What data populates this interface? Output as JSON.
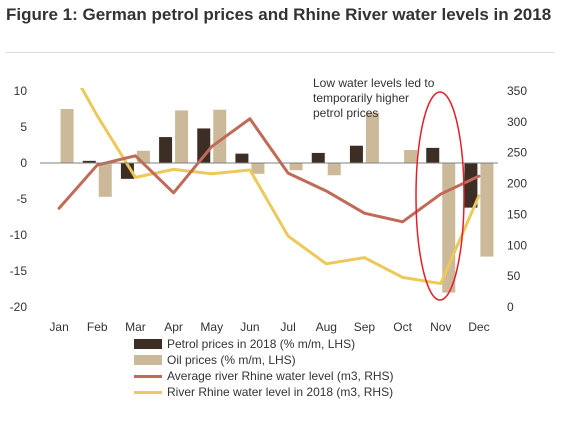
{
  "figure": {
    "title": "Figure 1: German petrol prices and Rhine River water levels in 2018"
  },
  "colors": {
    "petrol": "#3d2e25",
    "oil": "#cbb99a",
    "avg_river": "#c06a57",
    "river_2018": "#ecc95a",
    "ellipse": "#e2202a",
    "axis": "#808080"
  },
  "chart_data": {
    "type": "bar",
    "categories": [
      "Jan",
      "Feb",
      "Mar",
      "Apr",
      "May",
      "Jun",
      "Jul",
      "Aug",
      "Sep",
      "Oct",
      "Nov",
      "Dec"
    ],
    "ylim_left": [
      -20,
      10
    ],
    "yticks_left": [
      10,
      5,
      0,
      -5,
      -10,
      -15,
      -20
    ],
    "ylim_right": [
      0,
      350
    ],
    "yticks_right": [
      350,
      300,
      250,
      200,
      150,
      100,
      50,
      0
    ],
    "grid": false,
    "legend_position": "bottom",
    "series": [
      {
        "name": "Petrol prices in 2018 (% m/m, LHS)",
        "type": "bar",
        "axis": "left",
        "values": [
          null,
          0.3,
          -2.2,
          3.6,
          4.8,
          1.3,
          null,
          1.4,
          2.4,
          null,
          2.1,
          -6.2
        ]
      },
      {
        "name": "Oil prices (% m/m, LHS)",
        "type": "bar",
        "axis": "left",
        "values": [
          7.5,
          -4.7,
          1.7,
          7.3,
          7.4,
          -1.5,
          -1.0,
          -1.7,
          7.0,
          1.8,
          -18.0,
          -13.0
        ]
      },
      {
        "name": "Average river Rhine water level (m3, RHS)",
        "type": "line",
        "axis": "right",
        "values": [
          160,
          230,
          245,
          185,
          260,
          305,
          217,
          188,
          152,
          138,
          183,
          212
        ]
      },
      {
        "name": "River Rhine water level in 2018 (m3, RHS)",
        "type": "line",
        "axis": "right",
        "values": [
          420,
          310,
          210,
          223,
          216,
          222,
          115,
          70,
          80,
          48,
          38,
          180
        ]
      }
    ],
    "annotation": "Low water levels  led to temporarily higher petrol prices"
  }
}
